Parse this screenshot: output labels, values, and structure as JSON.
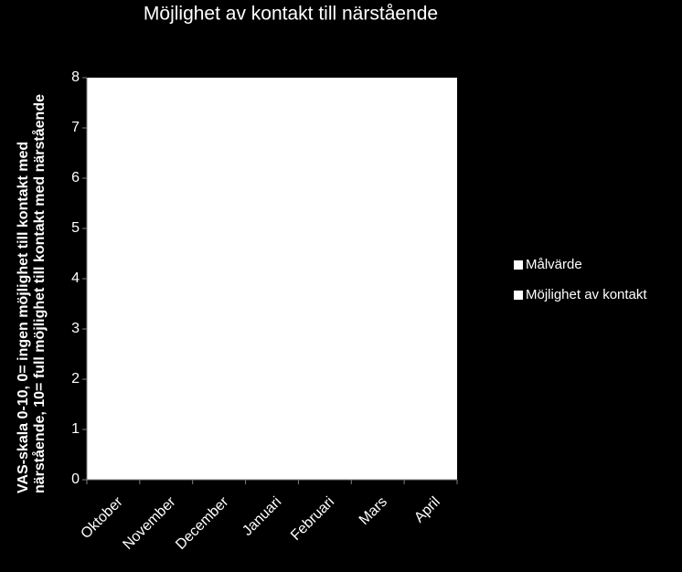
{
  "chart_data": {
    "type": "line",
    "title": "Möjlighet av kontakt till närstående",
    "y_label": "VAS-skala 0-10, 0= ingen möjlighet till kontakt med närstående, 10= full möjlighet till kontakt med närstående",
    "categories": [
      "Oktober",
      "November",
      "December",
      "Januari",
      "Februari",
      "Mars",
      "April"
    ],
    "series": [
      {
        "name": "Målvärde",
        "color": "#ffffff",
        "values": [
          null,
          null,
          null,
          null,
          null,
          null,
          null
        ]
      },
      {
        "name": "Möjlighet av kontakt",
        "color": "#ffffff",
        "values": [
          null,
          null,
          null,
          null,
          null,
          null,
          null
        ]
      }
    ],
    "ylim": [
      0,
      8
    ],
    "yticks": [
      0,
      1,
      2,
      3,
      4,
      5,
      6,
      7,
      8
    ]
  }
}
